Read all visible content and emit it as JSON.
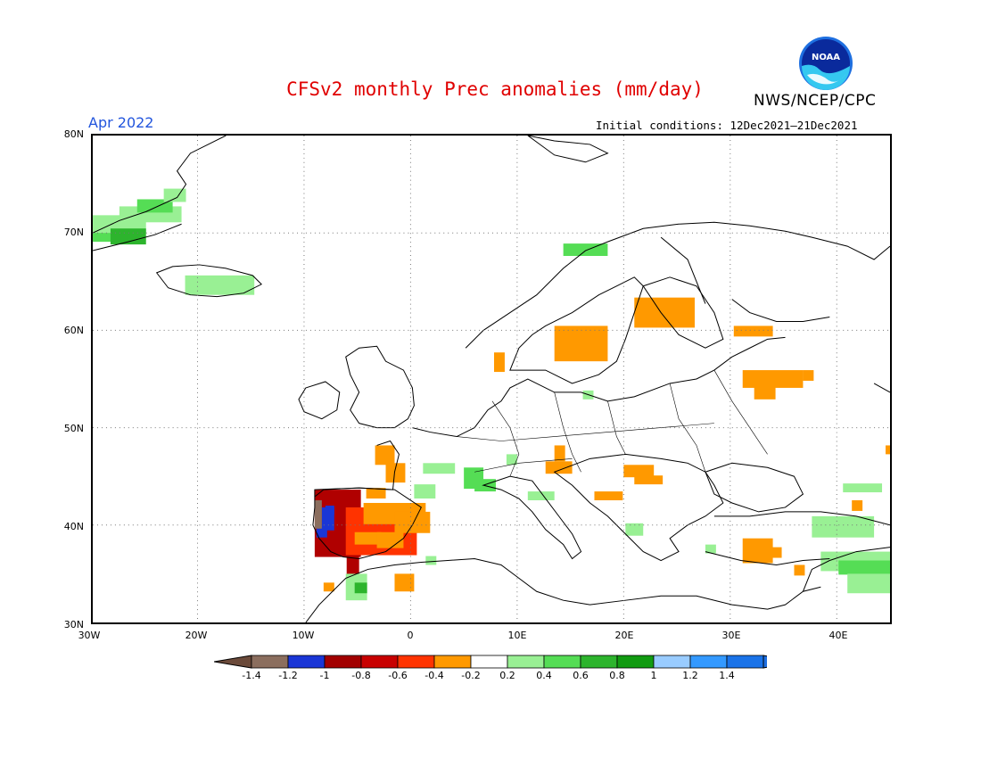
{
  "header": {
    "title": "CFSv2 monthly Prec anomalies (mm/day)",
    "agency": "NWS/NCEP/CPC",
    "month": "Apr 2022",
    "initial_conditions": "Initial conditions: 12Dec2021—21Dec2021",
    "logo_text": "NOAA"
  },
  "map": {
    "lat_labels": [
      "80N",
      "70N",
      "60N",
      "50N",
      "40N",
      "30N"
    ],
    "lon_labels": [
      "30W",
      "20W",
      "10W",
      "0",
      "10E",
      "20E",
      "30E",
      "40E"
    ],
    "grid": true
  },
  "legend": {
    "labels": [
      "-1.4",
      "-1.2",
      "-1",
      "-0.8",
      "-0.6",
      "-0.4",
      "-0.2",
      "0.2",
      "0.4",
      "0.6",
      "0.8",
      "1",
      "1.2",
      "1.4"
    ],
    "colors": [
      "#8b6e5e",
      "#1a36d6",
      "#a20000",
      "#c80000",
      "#ff3300",
      "#ff9900",
      "#ffffff",
      "#99f094",
      "#55dd55",
      "#2db42d",
      "#119b11",
      "#99ccff",
      "#3399ff",
      "#1a73e8"
    ],
    "left_arrow_color": "#6b4a3a",
    "right_arrow_color": "#1f6fe0"
  },
  "colors": {
    "negative_orange": "#ff9900",
    "negative_red": "#ff3300",
    "negative_darkred": "#b00000",
    "negative_blue": "#1a36d6",
    "negative_brown": "#8b6e5e",
    "positive_lightgreen": "#99f094",
    "positive_green": "#55dd55",
    "positive_darkgreen": "#2db42d"
  }
}
